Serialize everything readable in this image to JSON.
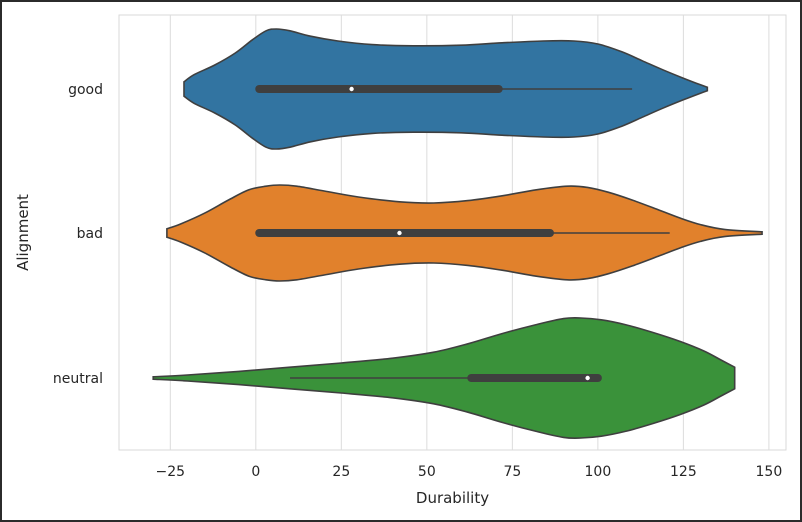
{
  "chart_data": {
    "type": "violin",
    "orientation": "horizontal",
    "xlabel": "Durability",
    "ylabel": "Alignment",
    "xlim": [
      -40,
      155
    ],
    "xticks": [
      -25,
      0,
      25,
      50,
      75,
      100,
      125,
      150
    ],
    "grid": "vertical",
    "categories": [
      "good",
      "bad",
      "neutral"
    ],
    "series": [
      {
        "category": "good",
        "color": "#3274a1",
        "range": [
          -21,
          132
        ],
        "quartiles": [
          1,
          28,
          71
        ],
        "whiskers": [
          1,
          110
        ],
        "density": [
          [
            -21,
            0.12
          ],
          [
            -18,
            0.24
          ],
          [
            -12,
            0.4
          ],
          [
            -6,
            0.6
          ],
          [
            -1,
            0.82
          ],
          [
            3,
            0.97
          ],
          [
            6,
            1.0
          ],
          [
            10,
            0.97
          ],
          [
            16,
            0.88
          ],
          [
            24,
            0.8
          ],
          [
            34,
            0.74
          ],
          [
            46,
            0.72
          ],
          [
            60,
            0.73
          ],
          [
            72,
            0.77
          ],
          [
            84,
            0.8
          ],
          [
            93,
            0.8
          ],
          [
            100,
            0.75
          ],
          [
            107,
            0.62
          ],
          [
            113,
            0.47
          ],
          [
            119,
            0.32
          ],
          [
            125,
            0.18
          ],
          [
            130,
            0.07
          ],
          [
            132,
            0.03
          ]
        ]
      },
      {
        "category": "bad",
        "color": "#e1812c",
        "range": [
          -26,
          148
        ],
        "quartiles": [
          1,
          42,
          86
        ],
        "whiskers": [
          1,
          121
        ],
        "density": [
          [
            -26,
            0.07
          ],
          [
            -22,
            0.15
          ],
          [
            -15,
            0.33
          ],
          [
            -8,
            0.55
          ],
          [
            -2,
            0.72
          ],
          [
            3,
            0.78
          ],
          [
            7,
            0.8
          ],
          [
            12,
            0.78
          ],
          [
            20,
            0.7
          ],
          [
            30,
            0.6
          ],
          [
            42,
            0.52
          ],
          [
            52,
            0.5
          ],
          [
            62,
            0.54
          ],
          [
            72,
            0.62
          ],
          [
            82,
            0.72
          ],
          [
            91,
            0.78
          ],
          [
            97,
            0.76
          ],
          [
            103,
            0.68
          ],
          [
            110,
            0.55
          ],
          [
            118,
            0.38
          ],
          [
            124,
            0.25
          ],
          [
            130,
            0.14
          ],
          [
            137,
            0.06
          ],
          [
            148,
            0.02
          ]
        ]
      },
      {
        "category": "neutral",
        "color": "#3a923a",
        "range": [
          -30,
          140
        ],
        "quartiles": [
          63,
          97,
          100
        ],
        "whiskers": [
          10,
          100
        ],
        "density": [
          [
            -30,
            0.02
          ],
          [
            -20,
            0.05
          ],
          [
            -5,
            0.11
          ],
          [
            10,
            0.18
          ],
          [
            25,
            0.25
          ],
          [
            40,
            0.33
          ],
          [
            52,
            0.43
          ],
          [
            62,
            0.57
          ],
          [
            72,
            0.74
          ],
          [
            82,
            0.89
          ],
          [
            90,
            0.99
          ],
          [
            95,
            1.0
          ],
          [
            101,
            0.97
          ],
          [
            108,
            0.89
          ],
          [
            116,
            0.76
          ],
          [
            124,
            0.61
          ],
          [
            131,
            0.45
          ],
          [
            136,
            0.3
          ],
          [
            140,
            0.18
          ]
        ]
      }
    ]
  }
}
